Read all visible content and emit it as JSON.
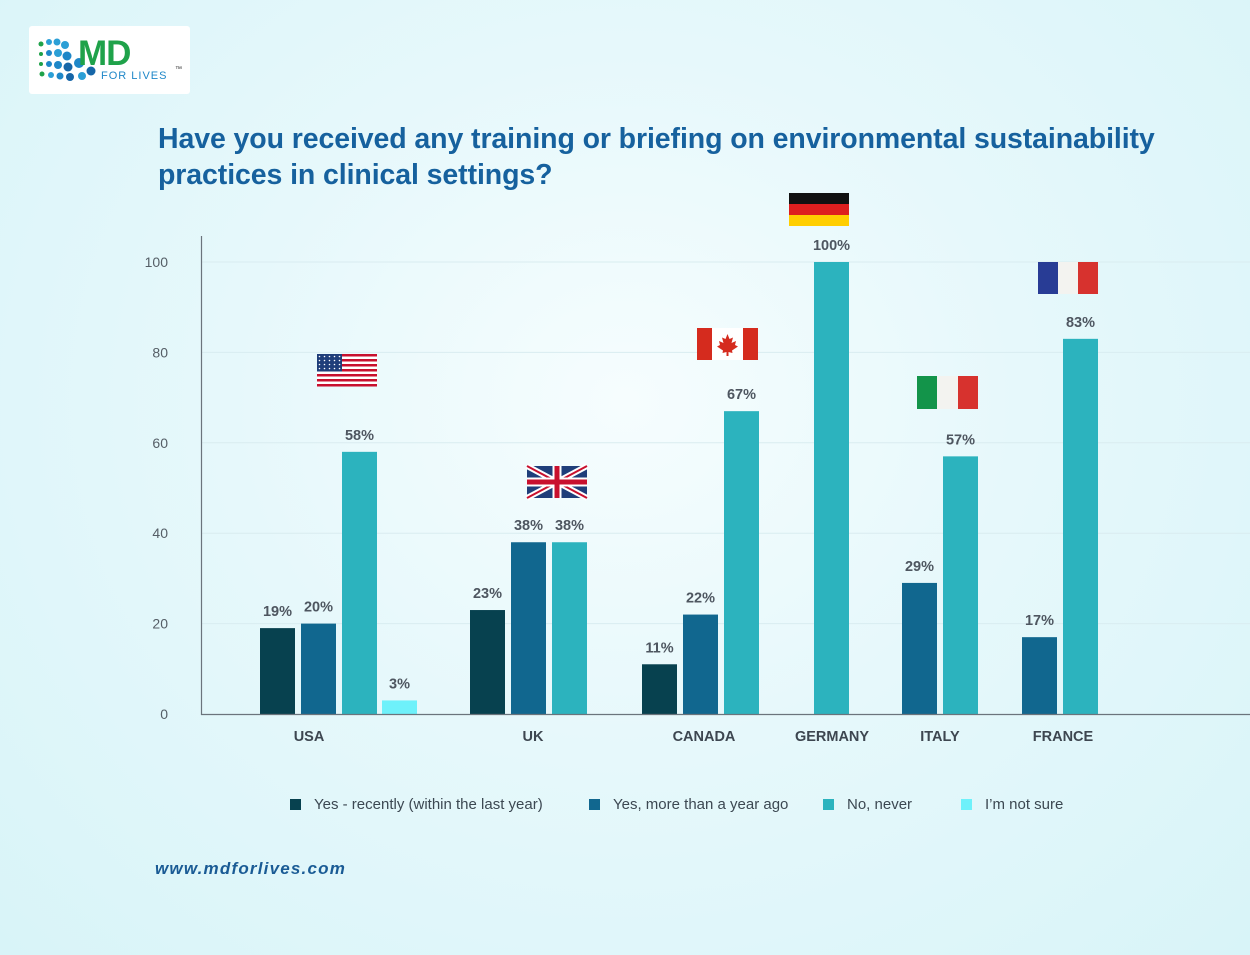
{
  "logo": {
    "text": "MD",
    "subtext": "FOR LIVES",
    "tm": "™"
  },
  "title": "Have you received any training or briefing on environmental sustainability practices in clinical settings?",
  "footer": {
    "url": "www.mdforlives.com"
  },
  "colors": {
    "series": [
      "#07414f",
      "#11678f",
      "#2cb3be",
      "#6ef1fa"
    ],
    "title": "#16619e"
  },
  "chart_data": {
    "type": "bar",
    "categories": [
      "USA",
      "UK",
      "CANADA",
      "GERMANY",
      "ITALY",
      "FRANCE"
    ],
    "flags": [
      "us-flag-icon",
      "uk-flag-icon",
      "canada-flag-icon",
      "germany-flag-icon",
      "italy-flag-icon",
      "france-flag-icon"
    ],
    "ylim": [
      0,
      105
    ],
    "yticks": [
      0,
      20,
      40,
      60,
      80,
      100
    ],
    "series": [
      {
        "name": "Yes - recently (within the last year)",
        "values": [
          19,
          23,
          11,
          null,
          null,
          null
        ],
        "labels": [
          "19%",
          "23%",
          "11%",
          null,
          null,
          null
        ]
      },
      {
        "name": "Yes, more than a year ago",
        "values": [
          20,
          38,
          22,
          null,
          29,
          17
        ],
        "labels": [
          "20%",
          "38%",
          "22%",
          null,
          "29%",
          "17%"
        ]
      },
      {
        "name": "No, never",
        "values": [
          58,
          38,
          67,
          100,
          57,
          83
        ],
        "labels": [
          "58%",
          "38%",
          "67%",
          "100%",
          "57%",
          "83%"
        ]
      },
      {
        "name": "I’m not sure",
        "values": [
          3,
          null,
          null,
          null,
          null,
          null
        ],
        "labels": [
          "3%",
          null,
          null,
          null,
          null,
          null
        ]
      }
    ]
  }
}
